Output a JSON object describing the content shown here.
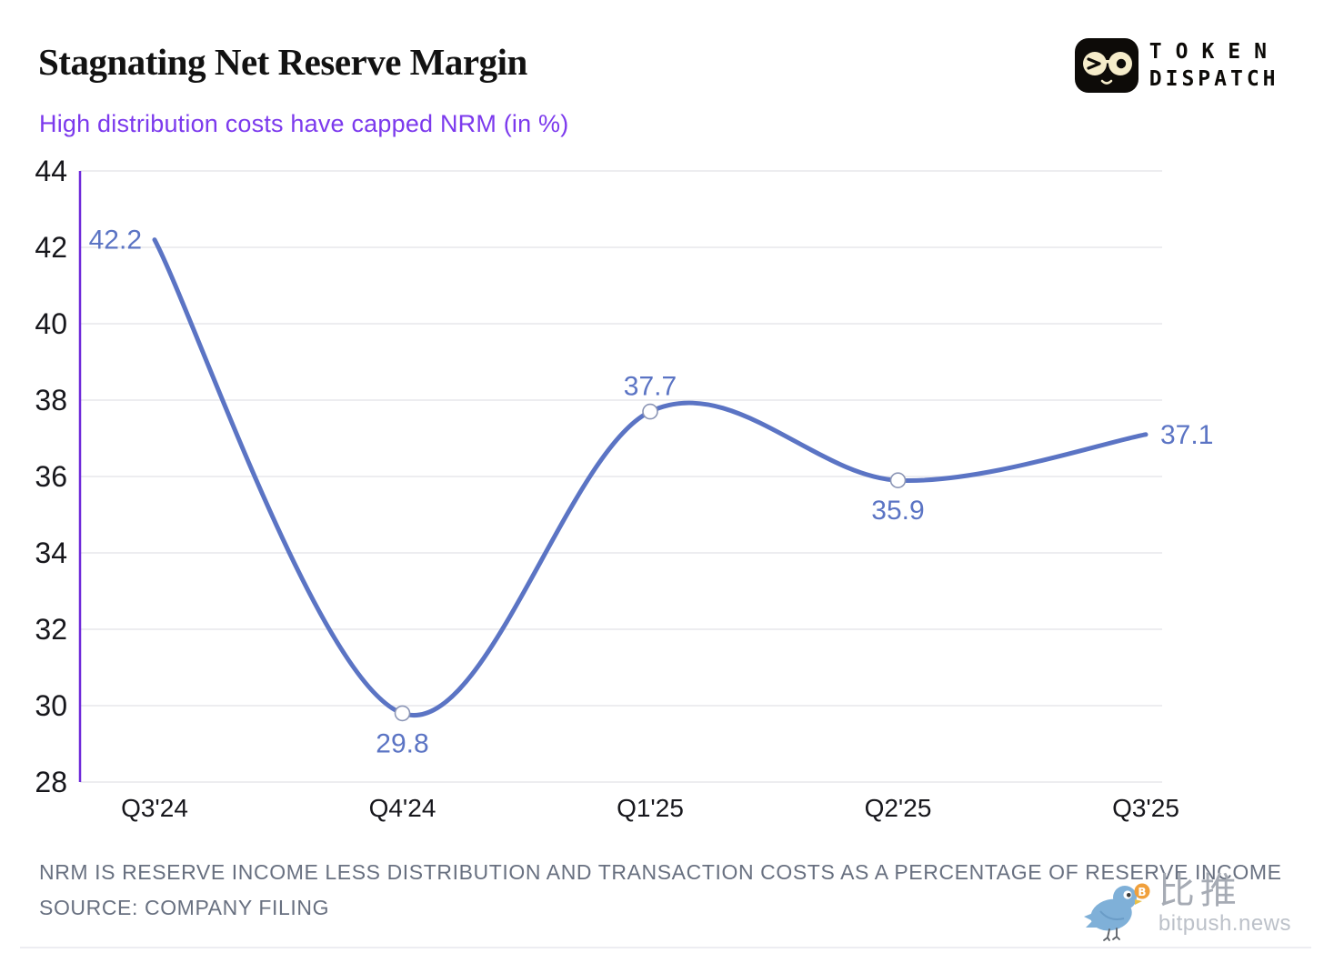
{
  "header": {
    "title": "Stagnating Net Reserve Margin",
    "subtitle": "High distribution costs have capped NRM (in %)",
    "brand": {
      "name": "Token Dispatch",
      "word1": "TOKEN",
      "word2": "DISPATCH",
      "icon": "winking-glasses-face-icon",
      "icon_bg": "#0d0b08",
      "icon_face": "#f5ecca"
    }
  },
  "chart_data": {
    "type": "line",
    "title": "Stagnating Net Reserve Margin",
    "subtitle": "High distribution costs have capped NRM (in %)",
    "xlabel": "",
    "ylabel": "NRM (in %)",
    "categories": [
      "Q3'24",
      "Q4'24",
      "Q1'25",
      "Q2'25",
      "Q3'25"
    ],
    "series": [
      {
        "name": "Net Reserve Margin",
        "values": [
          42.2,
          29.8,
          37.7,
          35.9,
          37.1
        ]
      }
    ],
    "data_labels": [
      "42.2",
      "29.8",
      "37.7",
      "35.9",
      "37.1"
    ],
    "label_positions": [
      "left",
      "below",
      "above",
      "below",
      "right"
    ],
    "markers": [
      false,
      true,
      true,
      true,
      false
    ],
    "ylim": [
      28,
      44
    ],
    "ytick_step": 2,
    "grid": true,
    "legend_position": "none",
    "colors": {
      "line": "#5b74c4",
      "data_label": "#5b74c4",
      "marker_stroke": "#8b95b5",
      "marker_fill": "#ffffff",
      "y_axis": "#6d28d9",
      "grid": "#e7e7ec",
      "tick_label": "#17171c",
      "x_label": "#17171c"
    }
  },
  "footer": {
    "note": "NRM IS RESERVE INCOME LESS DISTRIBUTION AND TRANSACTION COSTS AS A PERCENTAGE OF RESERVE INCOME",
    "source": "SOURCE: COMPANY FILING"
  },
  "watermark": {
    "cjk": "比推",
    "domain": "bitpush.news",
    "bird_color": "#7fb0d8",
    "coin_color": "#f0a03c"
  }
}
